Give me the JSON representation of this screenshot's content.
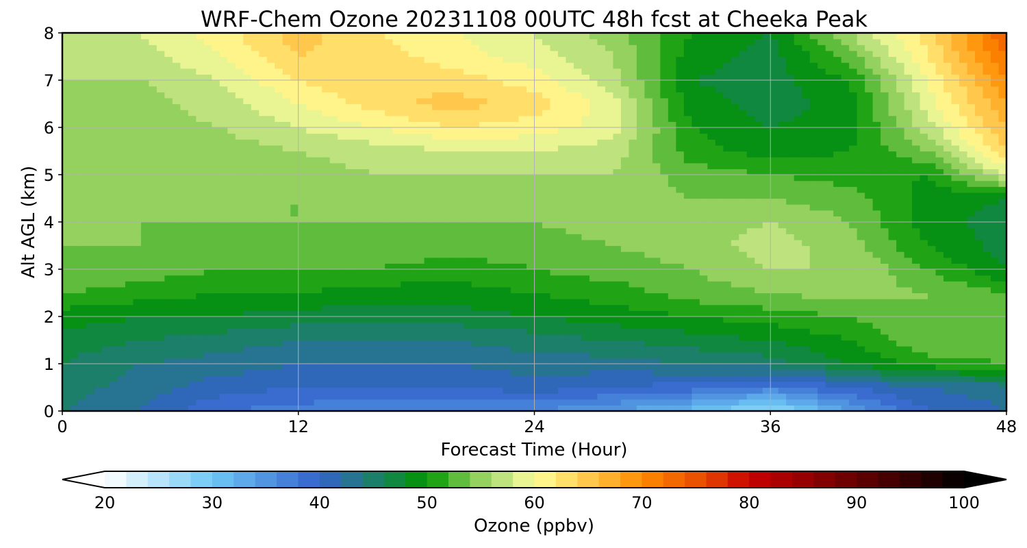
{
  "chart_data": {
    "type": "heatmap",
    "title": "WRF-Chem Ozone  20231108 00UTC 48h fcst at Cheeka Peak",
    "xlabel": "Forecast Time (Hour)",
    "ylabel": "Alt AGL (km)",
    "xlim": [
      0,
      48
    ],
    "ylim": [
      0,
      8
    ],
    "x_ticks": [
      "0",
      "12",
      "24",
      "36",
      "48"
    ],
    "y_ticks": [
      "0",
      "1",
      "2",
      "3",
      "4",
      "5",
      "6",
      "7",
      "8"
    ],
    "grid": true,
    "x": [
      0,
      4,
      8,
      12,
      16,
      20,
      24,
      28,
      32,
      36,
      40,
      44,
      48
    ],
    "y": [
      0,
      0.5,
      1,
      1.5,
      2,
      2.5,
      3,
      3.5,
      4,
      4.5,
      5,
      5.5,
      6,
      6.5,
      7,
      7.5,
      8
    ],
    "z": [
      [
        44,
        42,
        38,
        37,
        36,
        36,
        36,
        34,
        31,
        27,
        34,
        40,
        42
      ],
      [
        45,
        43,
        41,
        40,
        40,
        40,
        41,
        40,
        39,
        37,
        40,
        42,
        43
      ],
      [
        46,
        44,
        43,
        42,
        42,
        42,
        43,
        43,
        44,
        45,
        48,
        51,
        52
      ],
      [
        47,
        46,
        45,
        44,
        44,
        44,
        45,
        46,
        47,
        48,
        50,
        54,
        53
      ],
      [
        49,
        48,
        48,
        47,
        47,
        47,
        48,
        49,
        50,
        51,
        52,
        54,
        52
      ],
      [
        52,
        51,
        50,
        50,
        49,
        49,
        50,
        51,
        53,
        54,
        55,
        54,
        52
      ],
      [
        54,
        53,
        52,
        52,
        52,
        51,
        52,
        53,
        54,
        56,
        56,
        52,
        48
      ],
      [
        54,
        54,
        53,
        53,
        53,
        53,
        53,
        54,
        55,
        57,
        55,
        50,
        47
      ],
      [
        55,
        54,
        54,
        54,
        54,
        54,
        54,
        55,
        55,
        56,
        54,
        49,
        47
      ],
      [
        55,
        54,
        54,
        54,
        55,
        55,
        55,
        55,
        54,
        54,
        53,
        49,
        48
      ],
      [
        55,
        54,
        54,
        55,
        56,
        56,
        56,
        56,
        53,
        52,
        51,
        50,
        58
      ],
      [
        55,
        54,
        55,
        56,
        57,
        58,
        58,
        57,
        51,
        49,
        50,
        54,
        64
      ],
      [
        55,
        55,
        56,
        58,
        60,
        62,
        61,
        59,
        50,
        48,
        49,
        57,
        66
      ],
      [
        55,
        55,
        57,
        60,
        63,
        65,
        63,
        59,
        49,
        47,
        49,
        59,
        68
      ],
      [
        56,
        56,
        58,
        62,
        64,
        63,
        61,
        57,
        48,
        47,
        50,
        60,
        70
      ],
      [
        56,
        57,
        60,
        64,
        63,
        61,
        59,
        56,
        49,
        47,
        53,
        62,
        72
      ],
      [
        56,
        58,
        61,
        65,
        62,
        60,
        58,
        55,
        50,
        48,
        56,
        63,
        74
      ]
    ],
    "colorbar": {
      "label": "Ozone  (ppbv)",
      "min": 20,
      "max": 100,
      "step": 2,
      "ticks": [
        "20",
        "30",
        "40",
        "50",
        "60",
        "70",
        "80",
        "90",
        "100"
      ],
      "extend": "both",
      "stops": [
        {
          "v": 20,
          "c": "#ffffff"
        },
        {
          "v": 30,
          "c": "#6ec8f5"
        },
        {
          "v": 40,
          "c": "#3462cc"
        },
        {
          "v": 44,
          "c": "#227a7e"
        },
        {
          "v": 50,
          "c": "#009600"
        },
        {
          "v": 54,
          "c": "#80c850"
        },
        {
          "v": 58,
          "c": "#d2ea8c"
        },
        {
          "v": 60,
          "c": "#ffff9a"
        },
        {
          "v": 64,
          "c": "#ffd35a"
        },
        {
          "v": 70,
          "c": "#ff8c00"
        },
        {
          "v": 76,
          "c": "#e64600"
        },
        {
          "v": 80,
          "c": "#c80000"
        },
        {
          "v": 90,
          "c": "#640000"
        },
        {
          "v": 100,
          "c": "#000000"
        }
      ]
    }
  }
}
